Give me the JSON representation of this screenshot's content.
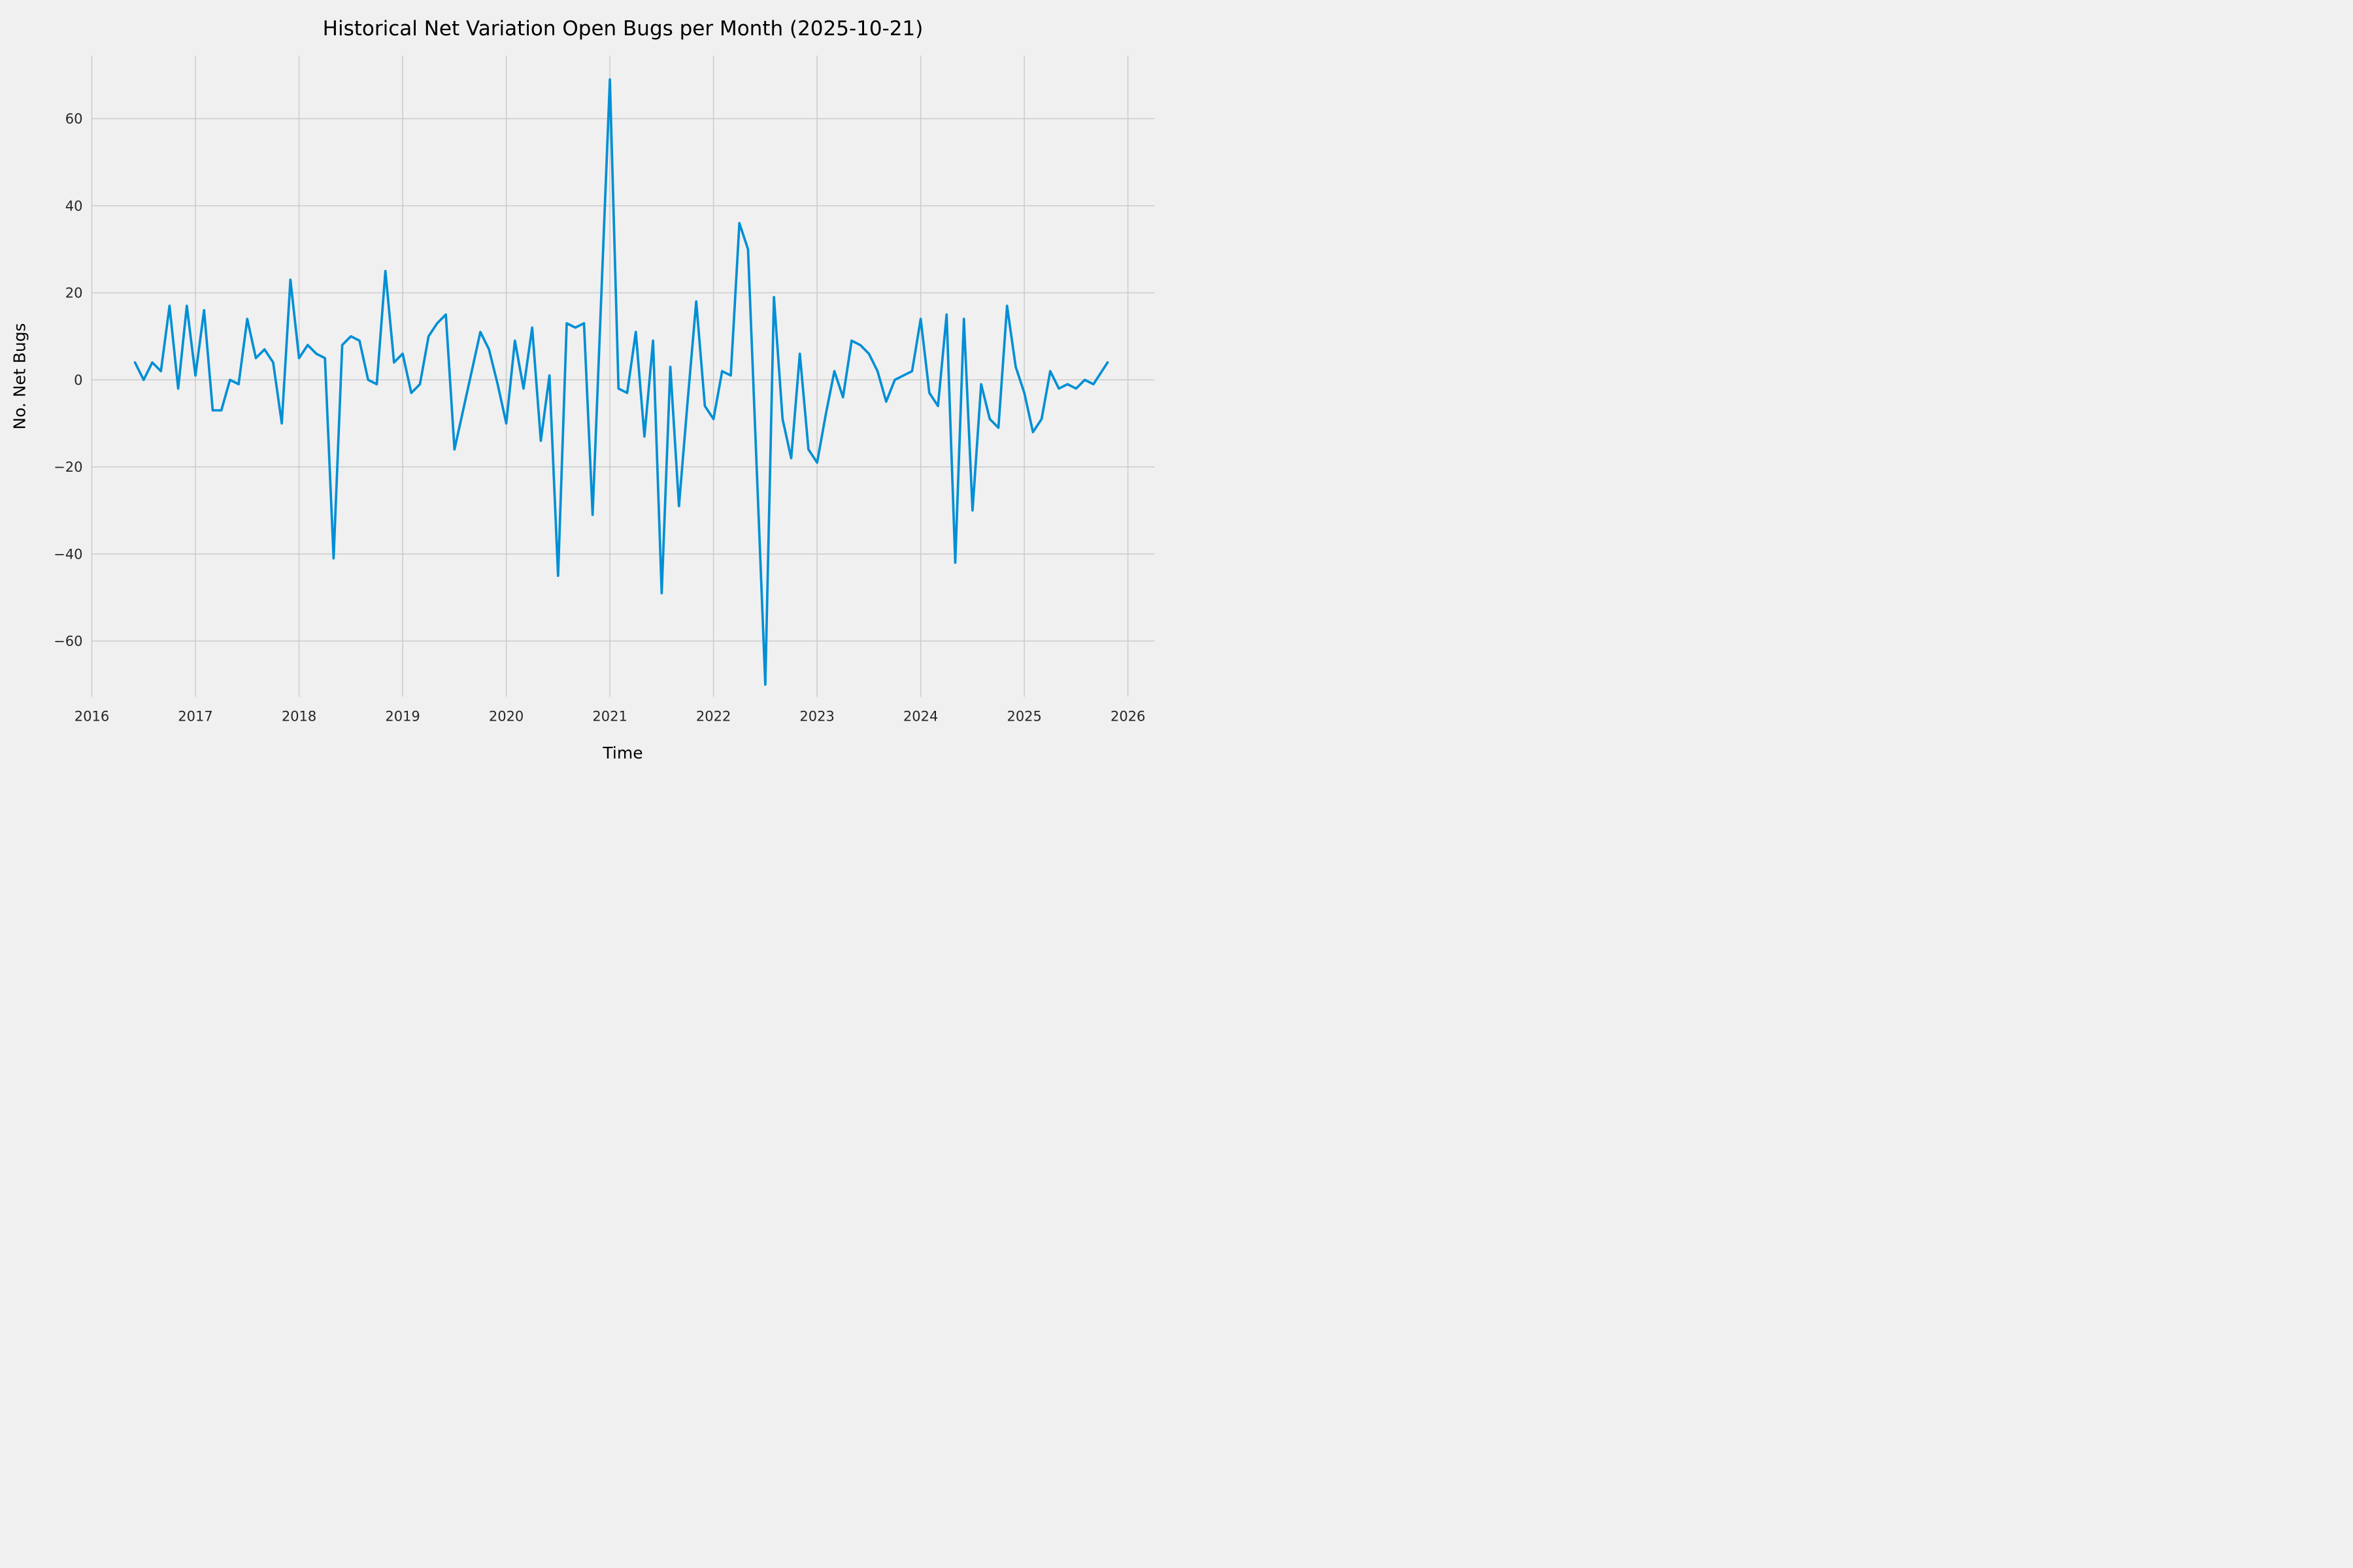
{
  "page": {
    "background": "#f0f0f0"
  },
  "chart_data": {
    "type": "line",
    "title": "Historical Net Variation Open Bugs per Month (2025-10-21)",
    "xlabel": "Time",
    "ylabel": "No. Net Bugs",
    "line_color": "#008fd5",
    "grid_color": "#cbcbcb",
    "background_color": "#f0f0f0",
    "text_color": "#262626",
    "grid": true,
    "legend": false,
    "x_tick_labels": [
      "2016",
      "2017",
      "2018",
      "2019",
      "2020",
      "2021",
      "2022",
      "2023",
      "2024",
      "2025",
      "2026"
    ],
    "y_ticks": [
      60,
      40,
      20,
      0,
      -20,
      -40,
      -60
    ],
    "start_month": "2016-06",
    "end_date": "2025-10-21",
    "months": [
      "2016-06",
      "2016-07",
      "2016-08",
      "2016-09",
      "2016-10",
      "2016-11",
      "2016-12",
      "2017-01",
      "2017-02",
      "2017-03",
      "2017-04",
      "2017-05",
      "2017-06",
      "2017-07",
      "2017-08",
      "2017-09",
      "2017-10",
      "2017-11",
      "2017-12",
      "2018-01",
      "2018-02",
      "2018-03",
      "2018-04",
      "2018-05",
      "2018-06",
      "2018-07",
      "2018-08",
      "2018-09",
      "2018-10",
      "2018-11",
      "2018-12",
      "2019-01",
      "2019-02",
      "2019-03",
      "2019-04",
      "2019-05",
      "2019-06",
      "2019-07",
      "2019-08",
      "2019-09",
      "2019-10",
      "2019-11",
      "2019-12",
      "2020-01",
      "2020-02",
      "2020-03",
      "2020-04",
      "2020-05",
      "2020-06",
      "2020-07",
      "2020-08",
      "2020-09",
      "2020-10",
      "2020-11",
      "2020-12",
      "2021-01",
      "2021-02",
      "2021-03",
      "2021-04",
      "2021-05",
      "2021-06",
      "2021-07",
      "2021-08",
      "2021-09",
      "2021-10",
      "2021-11",
      "2021-12",
      "2022-01",
      "2022-02",
      "2022-03",
      "2022-04",
      "2022-05",
      "2022-06",
      "2022-07",
      "2022-08",
      "2022-09",
      "2022-10",
      "2022-11",
      "2022-12",
      "2023-01",
      "2023-02",
      "2023-03",
      "2023-04",
      "2023-05",
      "2023-06",
      "2023-07",
      "2023-08",
      "2023-09",
      "2023-10",
      "2023-11",
      "2023-12",
      "2024-01",
      "2024-02",
      "2024-03",
      "2024-04",
      "2024-05",
      "2024-06",
      "2024-07",
      "2024-08",
      "2024-09",
      "2024-10",
      "2024-11",
      "2024-12",
      "2025-01",
      "2025-02",
      "2025-03",
      "2025-04",
      "2025-05",
      "2025-06",
      "2025-07",
      "2025-08",
      "2025-09",
      "2025-10"
    ],
    "values": [
      4,
      0,
      4,
      2,
      17,
      -2,
      17,
      1,
      16,
      -7,
      -7,
      0,
      -1,
      14,
      5,
      7,
      4,
      -10,
      23,
      5,
      8,
      6,
      5,
      -41,
      8,
      10,
      9,
      0,
      -1,
      25,
      4,
      6,
      -3,
      -1,
      10,
      13,
      15,
      -16,
      -7,
      2,
      11,
      7,
      -1,
      -10,
      9,
      -2,
      12,
      -14,
      1,
      -45,
      13,
      12,
      13,
      -31,
      19,
      69,
      -2,
      -3,
      11,
      -13,
      9,
      -49,
      3,
      -29,
      -5,
      18,
      -6,
      -9,
      2,
      1,
      36,
      30,
      -20,
      -70,
      19,
      -9,
      -18,
      6,
      -16,
      -19,
      -8,
      2,
      -4,
      9,
      8,
      6,
      2,
      -5,
      0,
      1,
      2,
      14,
      -3,
      -6,
      15,
      -42,
      14,
      -30,
      -1,
      -9,
      -11,
      17,
      3,
      -3,
      -12,
      -9,
      2,
      -2,
      -1,
      -2,
      0,
      -1,
      4
    ],
    "ylim": [
      -72.8,
      74.5
    ]
  }
}
